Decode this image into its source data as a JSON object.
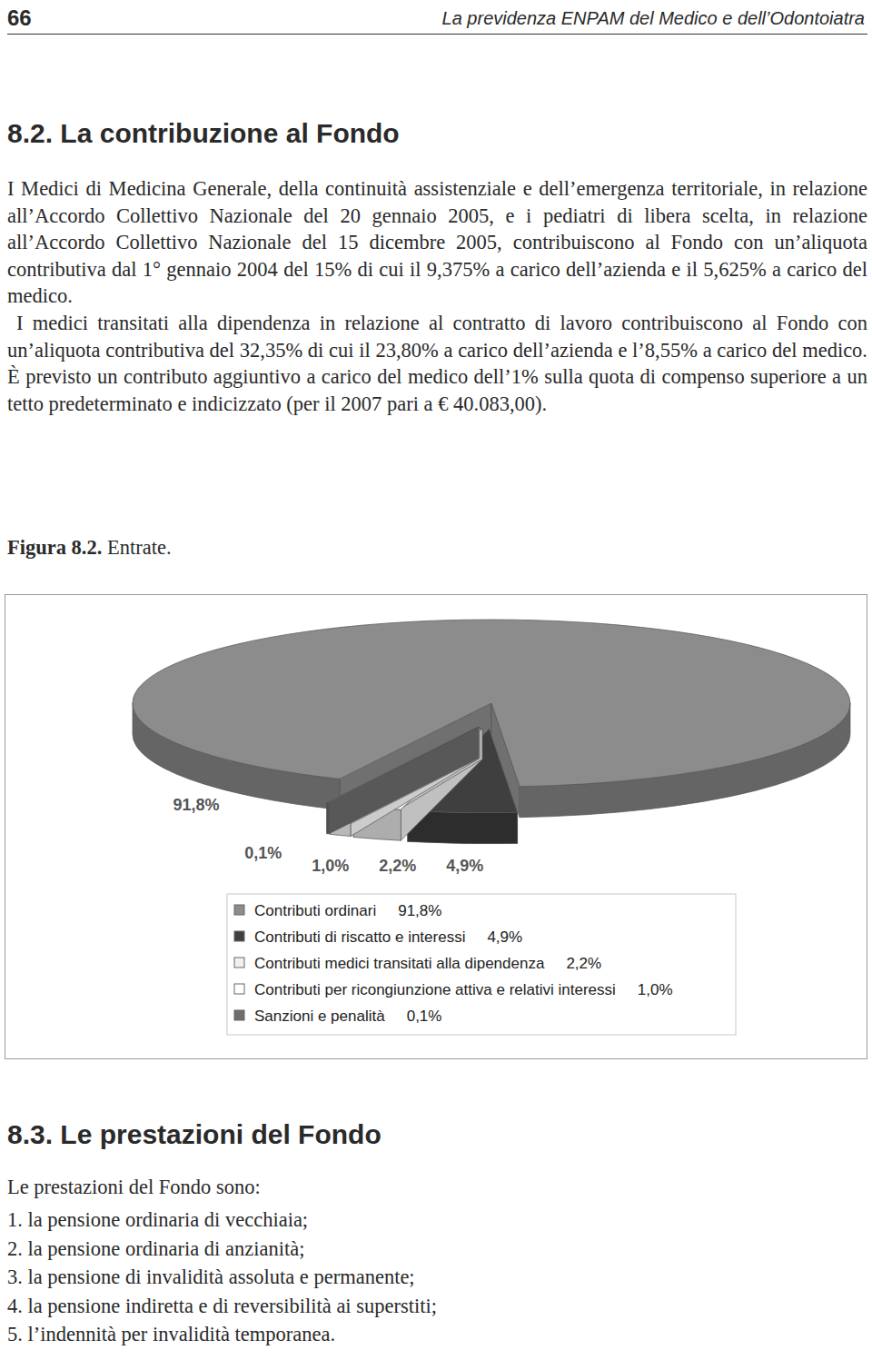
{
  "header": {
    "page_number": "66",
    "running_title": "La previdenza ENPAM del Medico e dell’Odontoiatra"
  },
  "sections": [
    {
      "heading": "8.2. La contribuzione al Fondo",
      "paragraphs": [
        "I Medici di Medicina Generale, della continuità assistenziale e dell’emergenza territoriale, in relazione all’Accordo Collettivo Nazionale del 20 gennaio 2005, e i pediatri di libera scelta, in relazione all’Accordo Collettivo Nazionale del 15 dicembre 2005, contribuiscono al Fondo con un’aliquota contributiva dal 1° gennaio 2004 del 15% di cui il 9,375% a carico dell’azienda e il 5,625% a carico del medico.",
        "I medici transitati alla dipendenza in relazione al contratto di lavoro contribuiscono al Fondo con un’aliquota contributiva del 32,35% di cui il 23,80% a carico dell’azienda e l’8,55% a carico del medico. È previsto un contributo aggiuntivo a carico del medico dell’1% sulla quota di compenso superiore a un tetto predeterminato e indicizzato (per il 2007 pari a € 40.083,00)."
      ]
    },
    {
      "heading": "8.3. Le prestazioni del Fondo",
      "intro": "Le prestazioni del Fondo sono:",
      "items": [
        "1. la pensione ordinaria di vecchiaia;",
        "2. la pensione ordinaria di anzianità;",
        "3. la pensione di invalidità assoluta e permanente;",
        "4. la pensione indiretta e di reversibilità ai superstiti;",
        "5. l’indennità per invalidità temporanea."
      ]
    }
  ],
  "figure": {
    "label": "Figura 8.2.",
    "caption": "Entrate."
  },
  "chart_data": {
    "type": "pie",
    "categories": [
      "Contributi ordinari",
      "Contributi di riscatto e interessi",
      "Contributi medici transitati alla dipendenza",
      "Contributi per ricongiunzione attiva e relativi interessi",
      "Sanzioni e penalità"
    ],
    "values": [
      91.8,
      4.9,
      2.2,
      1.0,
      0.1
    ],
    "value_labels": [
      "91,8%",
      "4,9%",
      "2,2%",
      "1,0%",
      "0,1%"
    ],
    "colors": [
      "#8c8c8c",
      "#3f3f3f",
      "#f0f0f0",
      "#ffffff",
      "#6e6e6e"
    ],
    "data_labels": true,
    "legend": "bottom"
  }
}
